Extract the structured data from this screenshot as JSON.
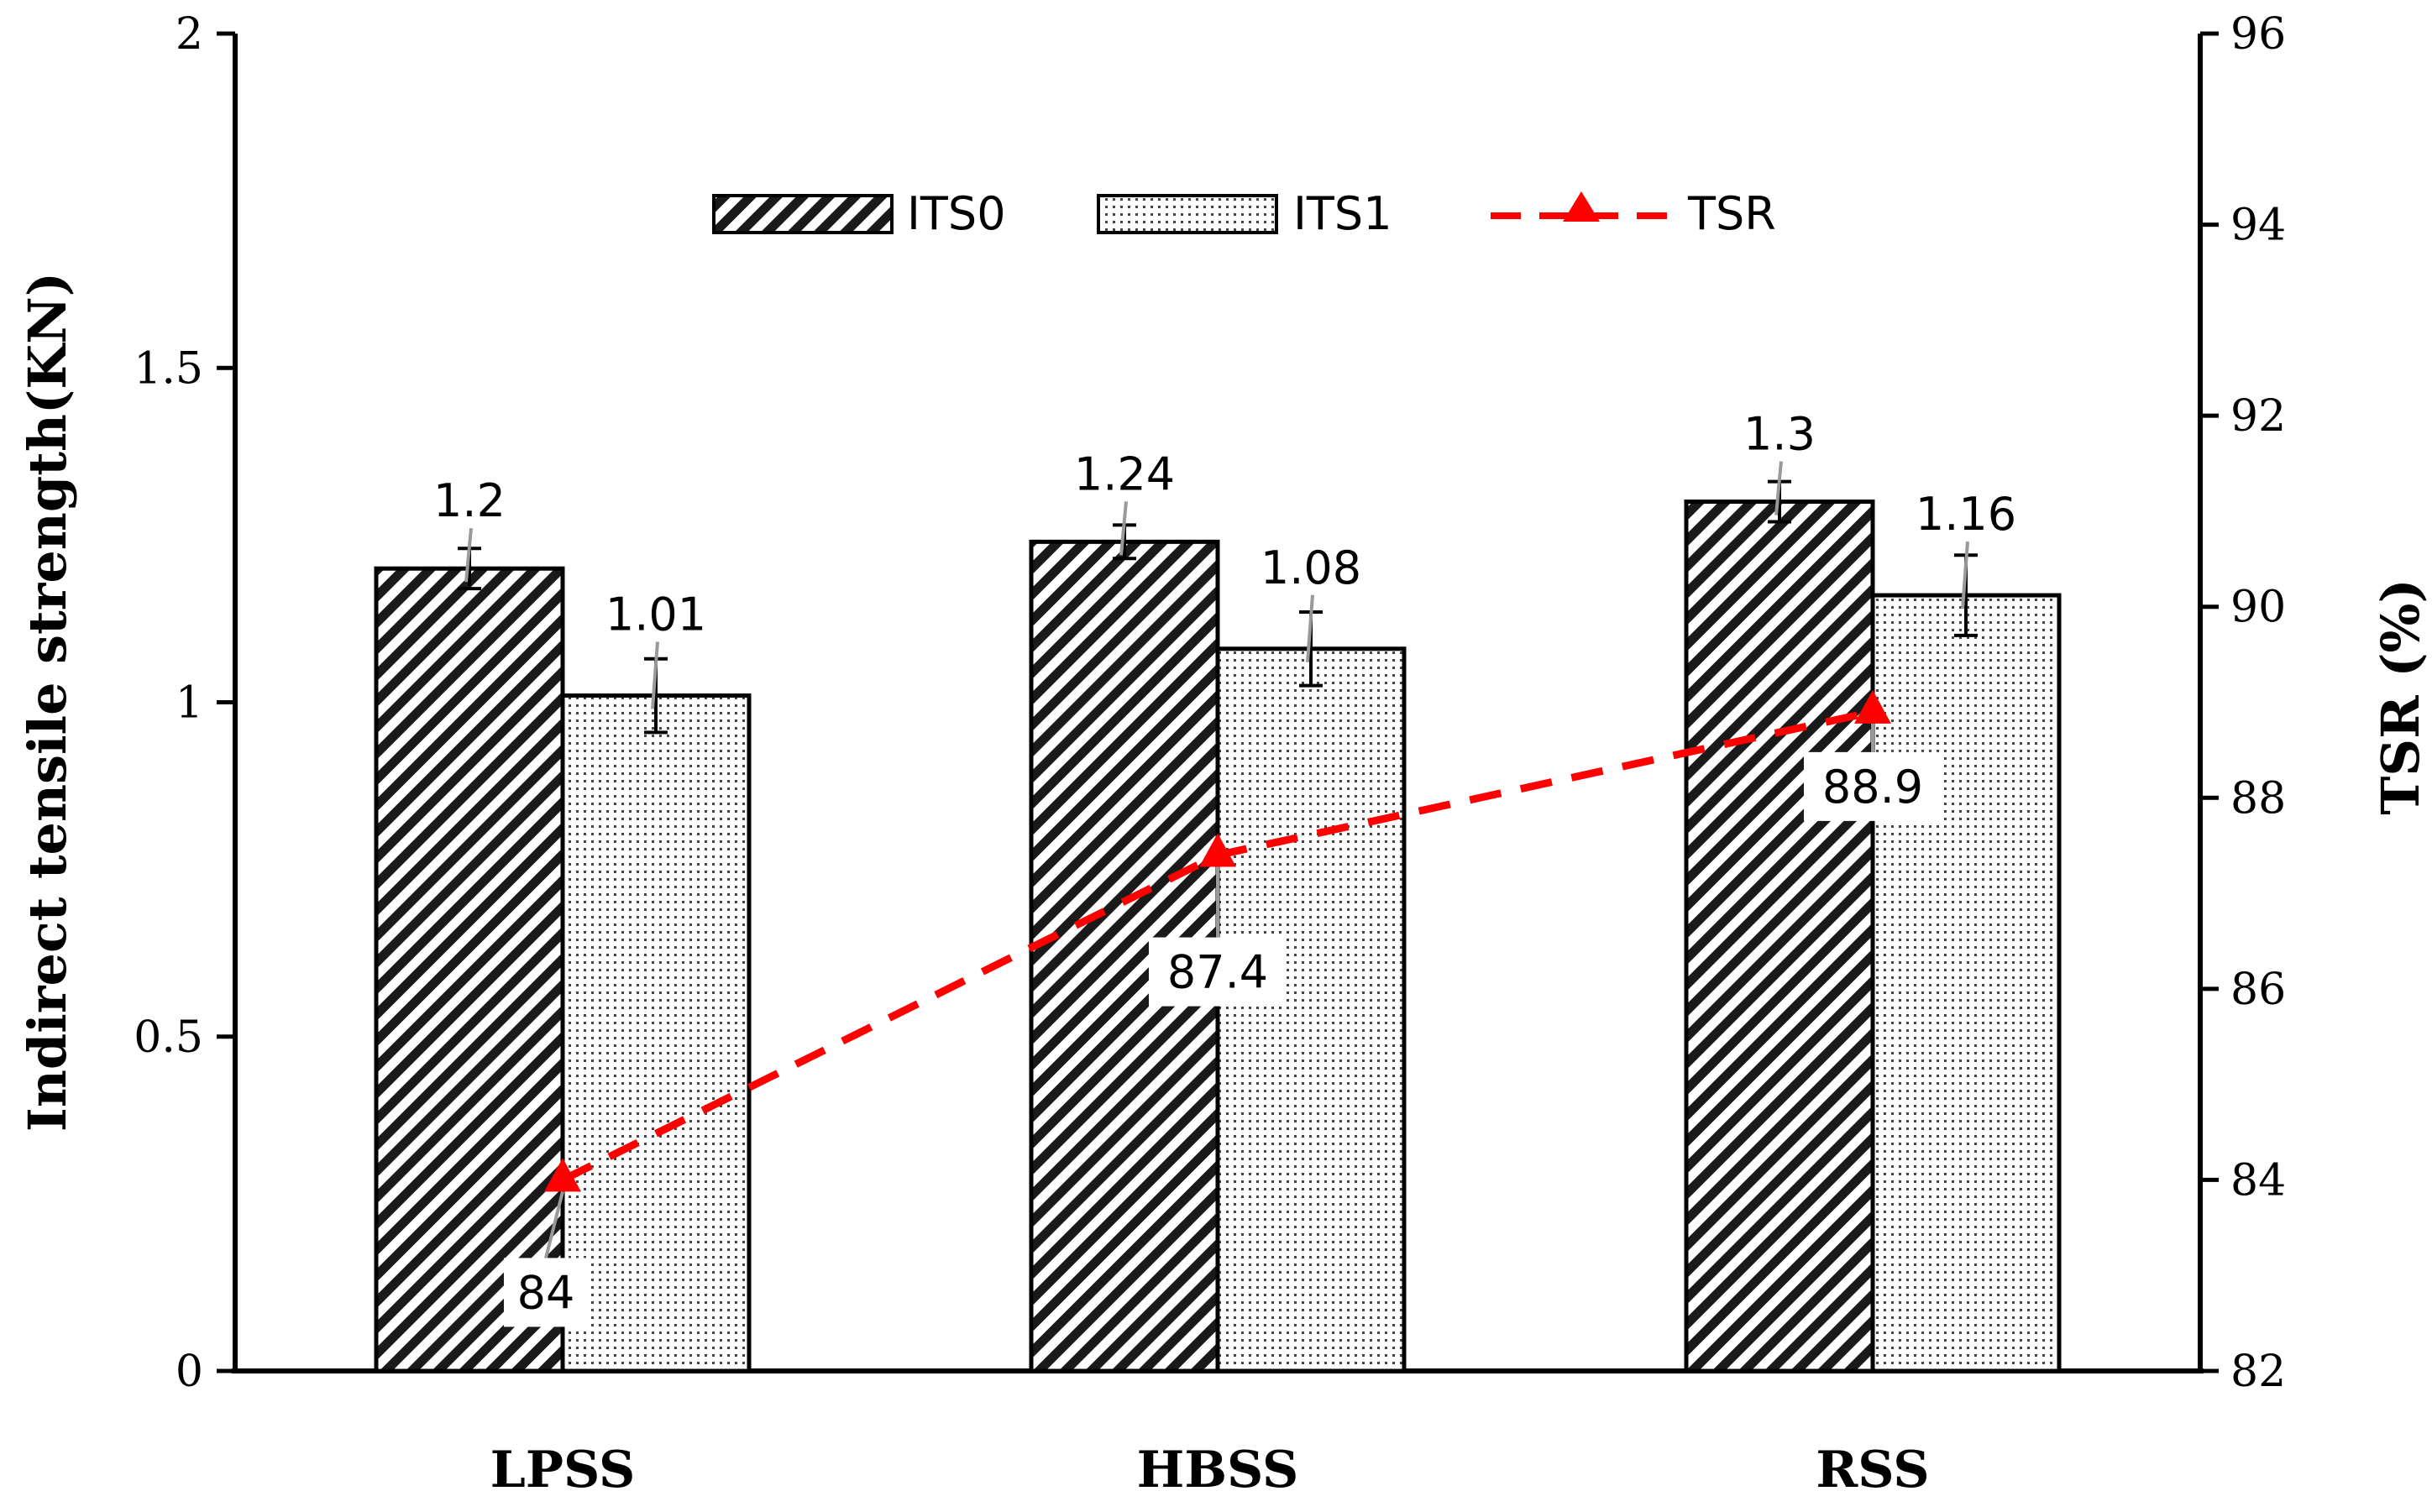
{
  "chart_data": {
    "type": "bar",
    "categories": [
      "LPSS",
      "HBSS",
      "RSS"
    ],
    "series": [
      {
        "name": "ITS0",
        "values": [
          1.2,
          1.24,
          1.3
        ],
        "labels": [
          "1.2",
          "1.24",
          "1.3"
        ],
        "errors": [
          0.03,
          0.025,
          0.03
        ],
        "pattern": "diagonal-hatch"
      },
      {
        "name": "ITS1",
        "values": [
          1.01,
          1.08,
          1.16
        ],
        "labels": [
          "1.01",
          "1.08",
          "1.16"
        ],
        "errors": [
          0.055,
          0.055,
          0.06
        ],
        "pattern": "dots"
      }
    ],
    "line_series": {
      "name": "TSR",
      "values": [
        84,
        87.4,
        88.9
      ],
      "labels": [
        "84",
        "87.4",
        "88.9"
      ],
      "color": "#ff0000",
      "axis": "right"
    },
    "ylabel": "Indirect tensile strength(KN)",
    "y2label": "TSR (%)",
    "ylim": [
      0,
      2
    ],
    "y2lim": [
      82,
      96
    ],
    "yticks": [
      "0",
      "0.5",
      "1",
      "1.5",
      "2"
    ],
    "y2ticks": [
      "82",
      "84",
      "86",
      "88",
      "90",
      "92",
      "94",
      "96"
    ],
    "legend_position": "top-center"
  }
}
